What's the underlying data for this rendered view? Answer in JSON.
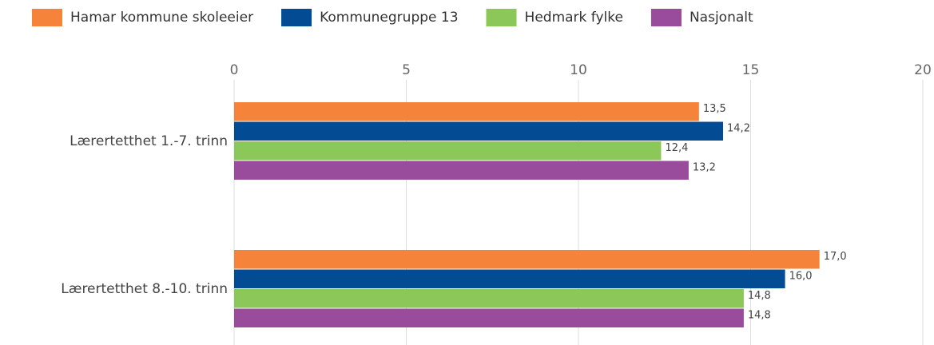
{
  "chart_data": {
    "type": "hbar",
    "categories": [
      "Lærertetthet 1.-7. trinn",
      "Lærertetthet 8.-10. trinn"
    ],
    "series": [
      {
        "name": "Hamar kommune skoleeier",
        "color": "#f5843a",
        "values": [
          13.5,
          17.0
        ],
        "value_labels": [
          "13,5",
          "17,0"
        ]
      },
      {
        "name": "Kommunegruppe 13",
        "color": "#034c93",
        "values": [
          14.2,
          16.0
        ],
        "value_labels": [
          "14,2",
          "16,0"
        ]
      },
      {
        "name": "Hedmark fylke",
        "color": "#8cc75a",
        "values": [
          12.4,
          14.8
        ],
        "value_labels": [
          "12,4",
          "14,8"
        ]
      },
      {
        "name": "Nasjonalt",
        "color": "#9a4c9c",
        "values": [
          13.2,
          14.8
        ],
        "value_labels": [
          "13,2",
          "14,8"
        ]
      }
    ],
    "xlim": [
      0,
      20
    ],
    "xticks": [
      0,
      5,
      10,
      15,
      20
    ],
    "grid": true,
    "legend": "top"
  }
}
